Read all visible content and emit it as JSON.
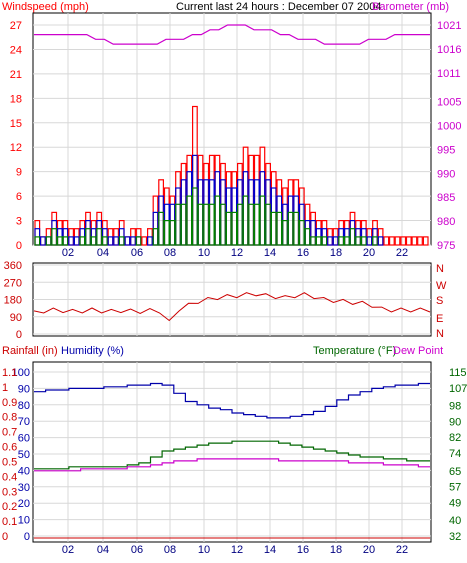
{
  "title": "Current last 24 hours : December 07 2004",
  "colors": {
    "wind": "#ff0000",
    "gust": "#0000cc",
    "avg": "#008000",
    "pressure": "#cc00cc",
    "direction": "#cc0000",
    "humidity": "#0000aa",
    "temperature": "#006600",
    "dewpoint": "#cc00cc",
    "rain": "#cc0000"
  },
  "chart_data": [
    {
      "type": "bar",
      "name": "wind-pressure",
      "left_label": "Windspeed (mph)",
      "right_label": "Barometer (mb)",
      "x_ticks": [
        "02",
        "04",
        "06",
        "08",
        "10",
        "12",
        "14",
        "16",
        "18",
        "20",
        "22"
      ],
      "left_ticks": [
        "0",
        "3",
        "6",
        "9",
        "12",
        "15",
        "18",
        "21",
        "24",
        "27"
      ],
      "right_ticks": [
        "975",
        "980",
        "985",
        "990",
        "995",
        "1000",
        "1005",
        "1011",
        "1016",
        "1021"
      ],
      "ylim_left": [
        0,
        27
      ],
      "ylim_right": [
        975,
        1021
      ],
      "grid": true,
      "series": [
        {
          "values": [
            3,
            1,
            2,
            4,
            3,
            3,
            2,
            2,
            3,
            4,
            3,
            4,
            3,
            2,
            2,
            3,
            1,
            2,
            2,
            1,
            2,
            6,
            8,
            7,
            6,
            9,
            10,
            11,
            17,
            11,
            10,
            11,
            11,
            10,
            9,
            9,
            10,
            12,
            11,
            11,
            12,
            10,
            9,
            8,
            7,
            8,
            8,
            7,
            5,
            4,
            3,
            3,
            2,
            2,
            3,
            3,
            4,
            3,
            3,
            2,
            3,
            2,
            1,
            1,
            1,
            1,
            1,
            1,
            1,
            1
          ]
        },
        {
          "values": [
            2,
            1,
            1,
            3,
            2,
            2,
            1,
            1,
            2,
            3,
            2,
            3,
            2,
            1,
            1,
            2,
            1,
            1,
            1,
            0,
            1,
            4,
            6,
            5,
            5,
            7,
            8,
            9,
            11,
            8,
            8,
            8,
            9,
            8,
            7,
            7,
            8,
            9,
            8,
            8,
            9,
            8,
            7,
            6,
            5,
            6,
            6,
            5,
            3,
            3,
            2,
            2,
            1,
            1,
            2,
            2,
            3,
            2,
            2,
            1,
            2,
            1,
            0,
            0,
            0,
            0,
            0,
            0,
            0,
            0
          ]
        },
        {
          "values": [
            1,
            0,
            1,
            2,
            1,
            1,
            0,
            0,
            1,
            2,
            1,
            2,
            1,
            0,
            0,
            1,
            0,
            0,
            1,
            0,
            0,
            2,
            4,
            3,
            3,
            5,
            5,
            6,
            7,
            5,
            5,
            5,
            6,
            5,
            4,
            4,
            5,
            6,
            5,
            5,
            6,
            5,
            4,
            4,
            3,
            4,
            4,
            3,
            2,
            1,
            1,
            1,
            0,
            0,
            1,
            1,
            2,
            1,
            1,
            0,
            1,
            0,
            0,
            0,
            0,
            0,
            0,
            0,
            0,
            0
          ]
        },
        {
          "values": [
            1019,
            1019,
            1019,
            1019,
            1019,
            1019,
            1019,
            1018,
            1018,
            1017,
            1017,
            1017,
            1017,
            1017,
            1017,
            1018,
            1018,
            1018,
            1019,
            1019,
            1020,
            1020,
            1021,
            1021,
            1021,
            1020,
            1020,
            1020,
            1019,
            1019,
            1018,
            1018,
            1018,
            1017,
            1017,
            1017,
            1017,
            1017,
            1018,
            1018,
            1018,
            1019,
            1019,
            1019,
            1019,
            1019
          ]
        }
      ]
    },
    {
      "type": "line",
      "name": "wind-direction",
      "left_ticks": [
        "0",
        "90",
        "180",
        "270",
        "360"
      ],
      "right_ticks": [
        "N",
        "W",
        "S",
        "E",
        "N"
      ],
      "ylim": [
        0,
        360
      ],
      "grid": true,
      "series": [
        {
          "values": [
            110,
            120,
            125,
            122,
            118,
            120,
            125,
            120,
            118,
            122,
            120,
            118,
            122,
            120,
            60,
            130,
            150,
            170,
            180,
            190,
            195,
            200,
            205,
            210,
            200,
            195,
            190,
            200,
            205,
            195,
            180,
            175,
            170,
            165,
            160,
            150,
            130,
            125,
            125,
            125,
            125,
            125
          ]
        }
      ]
    },
    {
      "type": "line",
      "name": "humidity-temperature",
      "left_label_1": "Rainfall (in)",
      "left_label_2": "Humidity (%)",
      "right_label_1": "Temperature (°F)",
      "right_label_2": "Dew Point",
      "x_ticks": [
        "02",
        "04",
        "06",
        "08",
        "10",
        "12",
        "14",
        "16",
        "18",
        "20",
        "22"
      ],
      "rain_ticks": [
        "0",
        "0.1",
        "0.2",
        "0.3",
        "0.4",
        "0.5",
        "0.6",
        "0.7",
        "0.8",
        "0.9",
        "1",
        "1.1"
      ],
      "humidity_ticks": [
        "0",
        "10",
        "20",
        "30",
        "40",
        "50",
        "60",
        "70",
        "80",
        "90",
        "100"
      ],
      "temp_ticks": [
        "32",
        "40",
        "49",
        "57",
        "65",
        "74",
        "82",
        "90",
        "98",
        "107",
        "115"
      ],
      "ylim_humidity": [
        0,
        100
      ],
      "ylim_temp": [
        32,
        115
      ],
      "grid": true,
      "series": [
        {
          "values": [
            88,
            89,
            89,
            90,
            90,
            90,
            91,
            91,
            92,
            92,
            93,
            92,
            87,
            82,
            80,
            78,
            77,
            75,
            74,
            73,
            72,
            72,
            73,
            74,
            76,
            79,
            83,
            86,
            88,
            90,
            91,
            92,
            92,
            93,
            93
          ]
        },
        {
          "values": [
            66,
            66,
            66,
            67,
            67,
            67,
            67,
            67,
            68,
            69,
            72,
            75,
            76,
            77,
            78,
            79,
            79,
            80,
            80,
            80,
            80,
            79,
            78,
            77,
            76,
            75,
            74,
            73,
            72,
            72,
            71,
            71,
            70,
            70,
            70
          ]
        },
        {
          "values": [
            65,
            65,
            65,
            65,
            66,
            66,
            66,
            66,
            67,
            67,
            68,
            69,
            70,
            70,
            71,
            71,
            71,
            71,
            71,
            71,
            71,
            70,
            70,
            70,
            70,
            70,
            70,
            69,
            69,
            69,
            68,
            68,
            68,
            67,
            67
          ]
        },
        {
          "values": [
            0,
            0,
            0,
            0,
            0,
            0,
            0,
            0,
            0,
            0,
            0,
            0,
            0,
            0,
            0,
            0,
            0,
            0,
            0,
            0,
            0,
            0,
            0,
            0,
            0,
            0,
            0,
            0,
            0,
            0,
            0,
            0,
            0,
            0,
            0
          ]
        }
      ]
    }
  ]
}
